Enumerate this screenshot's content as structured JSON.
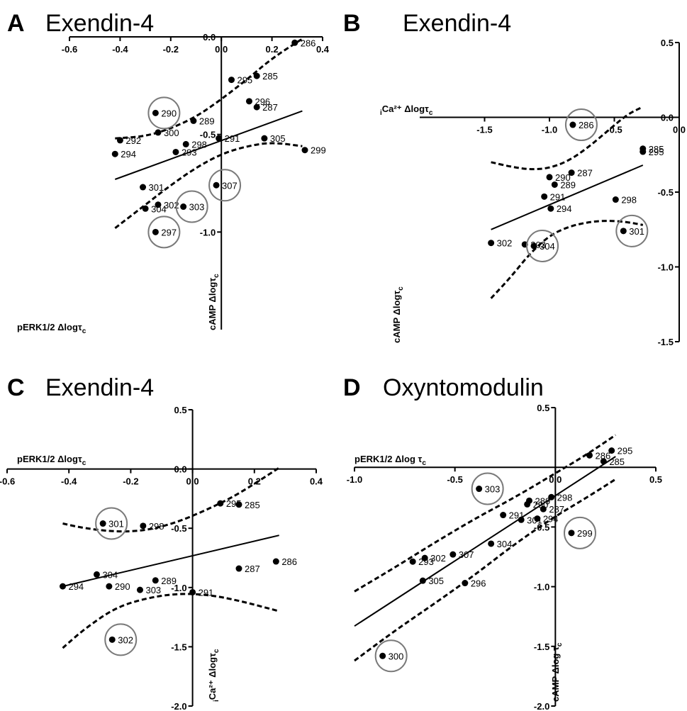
{
  "chart_data": [
    {
      "letter": "A",
      "title": "Exendin-4",
      "type": "scatter",
      "xlabel_main": "pERK1/2 Δlogτ",
      "xlabel_sub": "c",
      "ylabel_main": "cAMP Δlogτ",
      "ylabel_sub": "c",
      "ylabel_prefix": "",
      "xlim": [
        -0.6,
        0.4
      ],
      "ylim": [
        -1.5,
        0.0
      ],
      "xticks": [
        -0.6,
        -0.4,
        -0.2,
        0.0,
        0.2,
        0.4
      ],
      "xtick_labels": [
        "-0.6",
        "-0.4",
        "-0.2",
        "0.0",
        "0.2",
        "0.4"
      ],
      "yticks": [
        -1.0,
        -0.5,
        0.0
      ],
      "ytick_labels": [
        "-1.0",
        "-0.5",
        "0.0"
      ],
      "points": [
        {
          "label": "286",
          "x": 0.29,
          "y": -0.03,
          "circled": false
        },
        {
          "label": "295",
          "x": 0.04,
          "y": -0.22,
          "circled": false
        },
        {
          "label": "285",
          "x": 0.14,
          "y": -0.2,
          "circled": false
        },
        {
          "label": "296",
          "x": 0.11,
          "y": -0.33,
          "circled": false
        },
        {
          "label": "287",
          "x": 0.14,
          "y": -0.36,
          "circled": false
        },
        {
          "label": "290",
          "x": -0.26,
          "y": -0.39,
          "circled": true
        },
        {
          "label": "289",
          "x": -0.11,
          "y": -0.43,
          "circled": false
        },
        {
          "label": "300",
          "x": -0.25,
          "y": -0.49,
          "circled": false
        },
        {
          "label": "292",
          "x": -0.4,
          "y": -0.53,
          "circled": false
        },
        {
          "label": "298",
          "x": -0.14,
          "y": -0.55,
          "circled": false
        },
        {
          "label": "291",
          "x": -0.01,
          "y": -0.52,
          "circled": false
        },
        {
          "label": "305",
          "x": 0.17,
          "y": -0.52,
          "circled": false
        },
        {
          "label": "294",
          "x": -0.42,
          "y": -0.6,
          "circled": false
        },
        {
          "label": "293",
          "x": -0.18,
          "y": -0.59,
          "circled": false
        },
        {
          "label": "299",
          "x": 0.33,
          "y": -0.58,
          "circled": false
        },
        {
          "label": "301",
          "x": -0.31,
          "y": -0.77,
          "circled": false
        },
        {
          "label": "307",
          "x": -0.02,
          "y": -0.76,
          "circled": true
        },
        {
          "label": "302",
          "x": -0.25,
          "y": -0.86,
          "circled": false
        },
        {
          "label": "304",
          "x": -0.3,
          "y": -0.88,
          "circled": false
        },
        {
          "label": "303",
          "x": -0.15,
          "y": -0.87,
          "circled": true
        },
        {
          "label": "297",
          "x": -0.26,
          "y": -1.0,
          "circled": true
        }
      ],
      "fit_line": [
        [
          -0.42,
          -0.73
        ],
        [
          0.32,
          -0.38
        ]
      ],
      "ci_upper": [
        [
          -0.42,
          -0.52
        ],
        [
          -0.3,
          -0.51
        ],
        [
          -0.2,
          -0.47
        ],
        [
          -0.1,
          -0.41
        ],
        [
          0.0,
          -0.32
        ],
        [
          0.1,
          -0.22
        ],
        [
          0.2,
          -0.11
        ],
        [
          0.32,
          -0.01
        ]
      ],
      "ci_lower": [
        [
          -0.42,
          -0.98
        ],
        [
          -0.3,
          -0.86
        ],
        [
          -0.2,
          -0.76
        ],
        [
          -0.1,
          -0.67
        ],
        [
          0.0,
          -0.6
        ],
        [
          0.1,
          -0.56
        ],
        [
          0.2,
          -0.54
        ],
        [
          0.32,
          -0.56
        ]
      ]
    },
    {
      "letter": "B",
      "title": "Exendin-4",
      "type": "scatter",
      "xlabel_main": "Ca²⁺ Δlogτ",
      "xlabel_sub": "c",
      "xlabel_prefix": "i",
      "ylabel_main": "cAMP Δlogτ",
      "ylabel_sub": "c",
      "ylabel_prefix": "",
      "xlim": [
        -2.0,
        0.0
      ],
      "ylim": [
        -1.5,
        0.5
      ],
      "xticks": [
        -1.5,
        -1.0,
        -0.5,
        0.0
      ],
      "xtick_labels": [
        "-1.5",
        "-1.0",
        "-0.5",
        "0.0"
      ],
      "yticks": [
        -1.5,
        -1.0,
        -0.5,
        0.0,
        0.5
      ],
      "ytick_labels": [
        "-1.5",
        "-1.0",
        "-0.5",
        "0.0",
        "0.5"
      ],
      "points": [
        {
          "label": "286",
          "x": -0.82,
          "y": -0.05,
          "circled": true
        },
        {
          "label": "285",
          "x": -0.28,
          "y": -0.21,
          "circled": false
        },
        {
          "label": "295",
          "x": -0.28,
          "y": -0.23,
          "circled": false
        },
        {
          "label": "290",
          "x": -1.0,
          "y": -0.4,
          "circled": false
        },
        {
          "label": "287",
          "x": -0.83,
          "y": -0.37,
          "circled": false
        },
        {
          "label": "289",
          "x": -0.96,
          "y": -0.45,
          "circled": false
        },
        {
          "label": "291",
          "x": -1.04,
          "y": -0.53,
          "circled": false
        },
        {
          "label": "298",
          "x": -0.49,
          "y": -0.55,
          "circled": false
        },
        {
          "label": "294",
          "x": -0.99,
          "y": -0.61,
          "circled": false
        },
        {
          "label": "301",
          "x": -0.43,
          "y": -0.76,
          "circled": true
        },
        {
          "label": "302",
          "x": -1.45,
          "y": -0.84,
          "circled": false
        },
        {
          "label": "303",
          "x": -1.19,
          "y": -0.85,
          "circled": false
        },
        {
          "label": "304",
          "x": -1.12,
          "y": -0.86,
          "circled": true
        }
      ],
      "fit_line": [
        [
          -1.45,
          -0.75
        ],
        [
          -0.28,
          -0.32
        ]
      ],
      "ci_upper": [
        [
          -1.45,
          -0.3
        ],
        [
          -1.3,
          -0.33
        ],
        [
          -1.15,
          -0.35
        ],
        [
          -1.0,
          -0.34
        ],
        [
          -0.85,
          -0.29
        ],
        [
          -0.7,
          -0.2
        ],
        [
          -0.55,
          -0.09
        ],
        [
          -0.4,
          0.02
        ],
        [
          -0.28,
          0.07
        ]
      ],
      "ci_lower": [
        [
          -1.45,
          -1.21
        ],
        [
          -1.3,
          -1.07
        ],
        [
          -1.15,
          -0.91
        ],
        [
          -1.0,
          -0.79
        ],
        [
          -0.85,
          -0.73
        ],
        [
          -0.7,
          -0.7
        ],
        [
          -0.55,
          -0.69
        ],
        [
          -0.4,
          -0.7
        ],
        [
          -0.28,
          -0.72
        ]
      ]
    },
    {
      "letter": "C",
      "title": "Exendin-4",
      "type": "scatter",
      "xlabel_main": "pERK1/2 Δlogτ",
      "xlabel_sub": "c",
      "ylabel_main": "Ca²⁺ Δlogτ",
      "ylabel_sub": "c",
      "ylabel_prefix": "i",
      "xlim": [
        -0.6,
        0.4
      ],
      "ylim": [
        -2.0,
        0.5
      ],
      "xticks": [
        -0.6,
        -0.4,
        -0.2,
        0.0,
        0.2,
        0.4
      ],
      "xtick_labels": [
        "-0.6",
        "-0.4",
        "-0.2",
        "0.0",
        "0.2",
        "0.4"
      ],
      "yticks": [
        -2.0,
        -1.5,
        -1.0,
        -0.5,
        0.0,
        0.5
      ],
      "ytick_labels": [
        "-2.0",
        "-1.5",
        "-1.0",
        "-0.5",
        "0.0",
        "0.5"
      ],
      "points": [
        {
          "label": "295",
          "x": 0.09,
          "y": -0.29,
          "circled": false
        },
        {
          "label": "285",
          "x": 0.15,
          "y": -0.3,
          "circled": false
        },
        {
          "label": "301",
          "x": -0.29,
          "y": -0.46,
          "circled": true
        },
        {
          "label": "298",
          "x": -0.16,
          "y": -0.48,
          "circled": false
        },
        {
          "label": "286",
          "x": 0.27,
          "y": -0.78,
          "circled": false
        },
        {
          "label": "287",
          "x": 0.15,
          "y": -0.84,
          "circled": false
        },
        {
          "label": "304",
          "x": -0.31,
          "y": -0.89,
          "circled": false
        },
        {
          "label": "289",
          "x": -0.12,
          "y": -0.94,
          "circled": false
        },
        {
          "label": "294",
          "x": -0.42,
          "y": -0.99,
          "circled": false
        },
        {
          "label": "290",
          "x": -0.27,
          "y": -0.99,
          "circled": false
        },
        {
          "label": "303",
          "x": -0.17,
          "y": -1.02,
          "circled": false
        },
        {
          "label": "291",
          "x": 0.0,
          "y": -1.04,
          "circled": false
        },
        {
          "label": "302",
          "x": -0.26,
          "y": -1.44,
          "circled": true
        }
      ],
      "fit_line": [
        [
          -0.42,
          -0.99
        ],
        [
          0.28,
          -0.56
        ]
      ],
      "ci_upper": [
        [
          -0.42,
          -0.46
        ],
        [
          -0.35,
          -0.5
        ],
        [
          -0.25,
          -0.53
        ],
        [
          -0.15,
          -0.52
        ],
        [
          -0.05,
          -0.45
        ],
        [
          0.05,
          -0.34
        ],
        [
          0.15,
          -0.21
        ],
        [
          0.28,
          0.01
        ]
      ],
      "ci_lower": [
        [
          -0.42,
          -1.51
        ],
        [
          -0.35,
          -1.35
        ],
        [
          -0.25,
          -1.17
        ],
        [
          -0.15,
          -1.09
        ],
        [
          -0.05,
          -1.05
        ],
        [
          0.05,
          -1.06
        ],
        [
          0.15,
          -1.11
        ],
        [
          0.28,
          -1.2
        ]
      ]
    },
    {
      "letter": "D",
      "title": "Oxyntomodulin",
      "type": "scatter",
      "xlabel_main": "pERK1/2 Δlog τ",
      "xlabel_sub": "c",
      "ylabel_main": "cAMP Δlog τ",
      "ylabel_sub": "c",
      "ylabel_prefix": "",
      "xlim": [
        -1.0,
        0.5
      ],
      "ylim": [
        -2.0,
        0.5
      ],
      "xticks": [
        -1.0,
        -0.5,
        0.0,
        0.5
      ],
      "xtick_labels": [
        "-1.0",
        "-0.5",
        "0.0",
        "0.5"
      ],
      "yticks": [
        -2.0,
        -1.5,
        -1.0,
        -0.5,
        0.5
      ],
      "ytick_labels": [
        "-2.0",
        "-1.5",
        "-1.0",
        "-0.5",
        "0.5"
      ],
      "points": [
        {
          "label": "286",
          "x": 0.17,
          "y": 0.1,
          "circled": false
        },
        {
          "label": "295",
          "x": 0.28,
          "y": 0.14,
          "circled": false
        },
        {
          "label": "285",
          "x": 0.24,
          "y": 0.05,
          "circled": false
        },
        {
          "label": "303",
          "x": -0.38,
          "y": -0.18,
          "circled": true
        },
        {
          "label": "298",
          "x": -0.02,
          "y": -0.25,
          "circled": false
        },
        {
          "label": "289",
          "x": -0.13,
          "y": -0.28,
          "circled": false
        },
        {
          "label": "290",
          "x": -0.14,
          "y": -0.31,
          "circled": false
        },
        {
          "label": "287",
          "x": -0.06,
          "y": -0.35,
          "circled": false
        },
        {
          "label": "291",
          "x": -0.26,
          "y": -0.4,
          "circled": false
        },
        {
          "label": "294",
          "x": -0.09,
          "y": -0.43,
          "circled": false
        },
        {
          "label": "301",
          "x": -0.17,
          "y": -0.44,
          "circled": false
        },
        {
          "label": "299",
          "x": 0.08,
          "y": -0.55,
          "circled": true
        },
        {
          "label": "304",
          "x": -0.32,
          "y": -0.64,
          "circled": false
        },
        {
          "label": "307",
          "x": -0.51,
          "y": -0.73,
          "circled": false
        },
        {
          "label": "302",
          "x": -0.65,
          "y": -0.76,
          "circled": false
        },
        {
          "label": "293",
          "x": -0.71,
          "y": -0.79,
          "circled": false
        },
        {
          "label": "305",
          "x": -0.66,
          "y": -0.95,
          "circled": false
        },
        {
          "label": "296",
          "x": -0.45,
          "y": -0.97,
          "circled": false
        },
        {
          "label": "300",
          "x": -0.86,
          "y": -1.58,
          "circled": true
        }
      ],
      "fit_line": [
        [
          -1.0,
          -1.33
        ],
        [
          0.3,
          0.09
        ]
      ],
      "ci_upper": [
        [
          -1.0,
          -1.04
        ],
        [
          -0.8,
          -0.84
        ],
        [
          -0.6,
          -0.63
        ],
        [
          -0.4,
          -0.43
        ],
        [
          -0.2,
          -0.25
        ],
        [
          0.0,
          -0.05
        ],
        [
          0.15,
          0.1
        ],
        [
          0.3,
          0.27
        ]
      ],
      "ci_lower": [
        [
          -1.0,
          -1.62
        ],
        [
          -0.8,
          -1.37
        ],
        [
          -0.6,
          -1.14
        ],
        [
          -0.4,
          -0.9
        ],
        [
          -0.2,
          -0.64
        ],
        [
          0.0,
          -0.41
        ],
        [
          0.15,
          -0.26
        ],
        [
          0.3,
          -0.1
        ]
      ]
    }
  ]
}
